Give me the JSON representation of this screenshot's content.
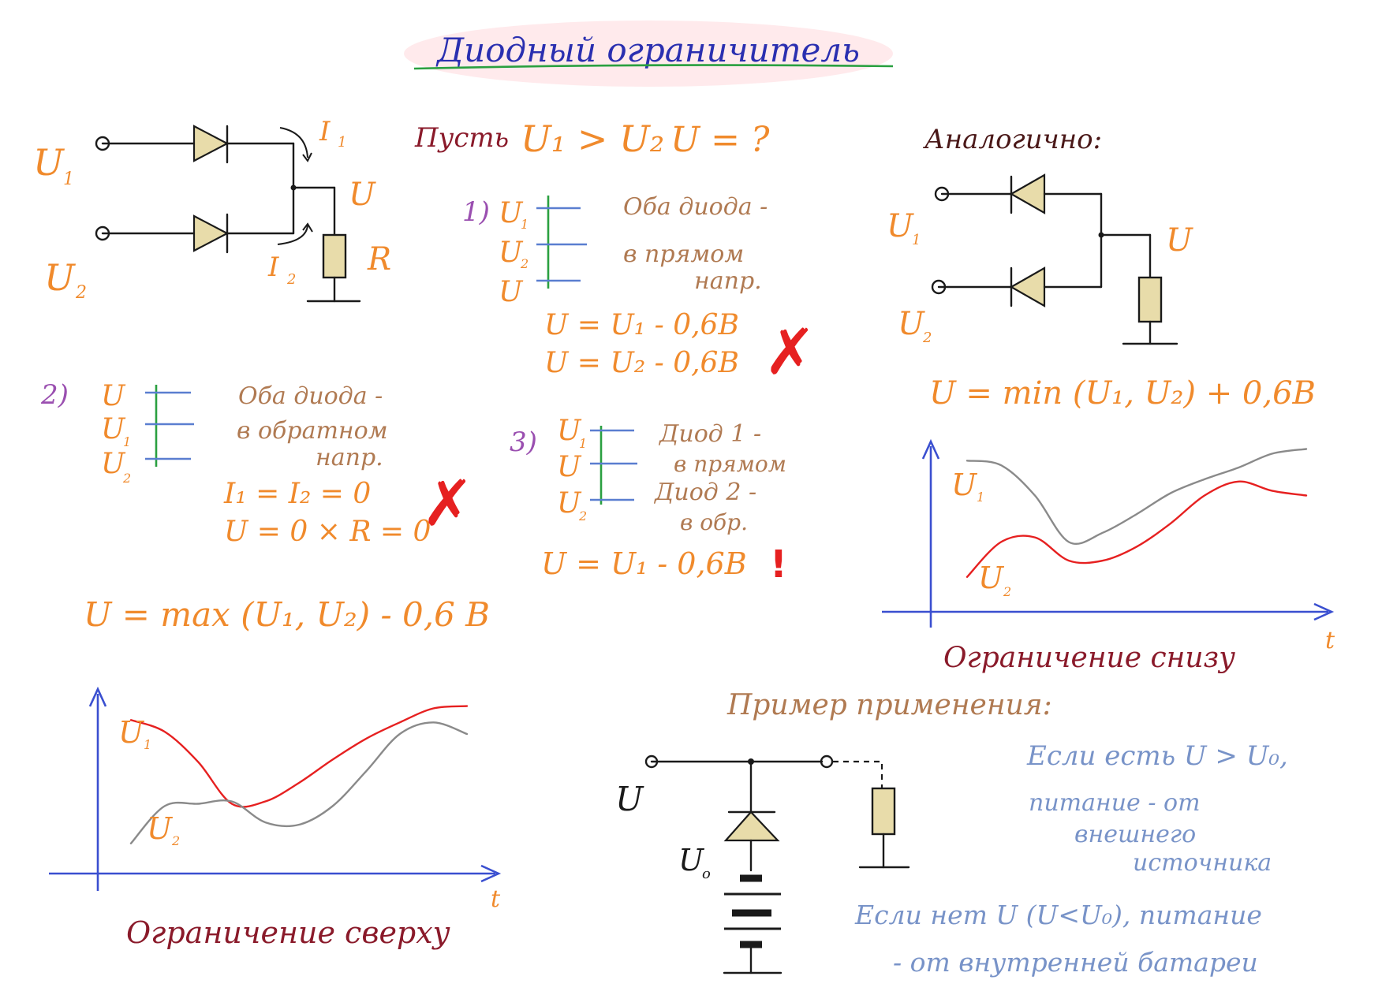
{
  "title": "Диодный ограничитель",
  "labels": {
    "U": "U",
    "U1": "U",
    "U2": "U",
    "sub1": "1",
    "sub2": "2",
    "I": "I",
    "R": "R",
    "t": "t",
    "U0": "U",
    "sub0": "o"
  },
  "premise": {
    "text": "Пусть",
    "cond": "U₁ > U₂",
    "question": "U = ?"
  },
  "analog": "Аналогично:",
  "case1": {
    "number": "1)",
    "note": [
      "Оба диода -",
      "в прямом",
      "напр."
    ],
    "eq1": "U = U₁ - 0,6В",
    "eq2": "U = U₂ - 0,6В",
    "mark": "✗"
  },
  "case2": {
    "number": "2)",
    "note": [
      "Оба диода -",
      "в обратном",
      "напр."
    ],
    "eq1": "I₁ = I₂ = 0",
    "eq2": "U = 0 × R = 0",
    "mark": "✗"
  },
  "case3": {
    "number": "3)",
    "note": [
      "Диод 1 -",
      "в прямом",
      "Диод 2 -",
      "в обр."
    ],
    "eq1": "U = U₁ - 0,6В",
    "mark": "!"
  },
  "formula_max": "U = max (U₁, U₂) - 0,6 В",
  "formula_min": "U = min (U₁, U₂) + 0,6В",
  "caption_top": "Ограничение сверху",
  "caption_bottom": "Ограничение снизу",
  "example_title": "Пример применения:",
  "example_note1": [
    "Если есть U > U₀,",
    "питание - от",
    "внешнего",
    "источника"
  ],
  "example_note2": [
    "Если нет U (U<U₀), питание",
    "- от внутренней батареи"
  ],
  "colors": {
    "orange": "#f08a2c",
    "purple": "#9a4fb0",
    "maroon": "#8a1a2a",
    "red_curve": "#e62020",
    "gray_curve": "#8a8a8a",
    "axis": "#3a4fd0",
    "note_blue": "#7893c8"
  },
  "chart_data": [
    {
      "type": "line",
      "title": "Ограничение сверху",
      "xlabel": "t",
      "ylabel": "",
      "series": [
        {
          "name": "U₁",
          "color": "red",
          "x": [
            0,
            1,
            2,
            3,
            4,
            5,
            6,
            7,
            8,
            9,
            10
          ],
          "values": [
            6.6,
            6.1,
            4.8,
            3.0,
            3.1,
            3.9,
            4.9,
            5.8,
            6.5,
            7.1,
            7.2
          ]
        },
        {
          "name": "U₂",
          "color": "gray",
          "x": [
            0,
            1,
            2,
            3,
            4,
            5,
            6,
            7,
            8,
            9,
            10
          ],
          "values": [
            1.3,
            2.9,
            3.0,
            3.1,
            2.2,
            2.1,
            2.9,
            4.4,
            6.0,
            6.5,
            6.0
          ]
        }
      ]
    },
    {
      "type": "line",
      "title": "Ограничение снизу",
      "xlabel": "t",
      "ylabel": "",
      "series": [
        {
          "name": "U₁",
          "color": "gray",
          "x": [
            0,
            1,
            2,
            3,
            4,
            5,
            6,
            7,
            8,
            9,
            10
          ],
          "values": [
            6.5,
            6.3,
            5.0,
            3.0,
            3.4,
            4.2,
            5.1,
            5.7,
            6.2,
            6.8,
            7.0
          ]
        },
        {
          "name": "U₂",
          "color": "red",
          "x": [
            0,
            1,
            2,
            3,
            4,
            5,
            6,
            7,
            8,
            9,
            10
          ],
          "values": [
            1.5,
            3.0,
            3.2,
            2.2,
            2.2,
            2.8,
            3.8,
            5.0,
            5.6,
            5.2,
            5.0
          ]
        }
      ]
    }
  ]
}
